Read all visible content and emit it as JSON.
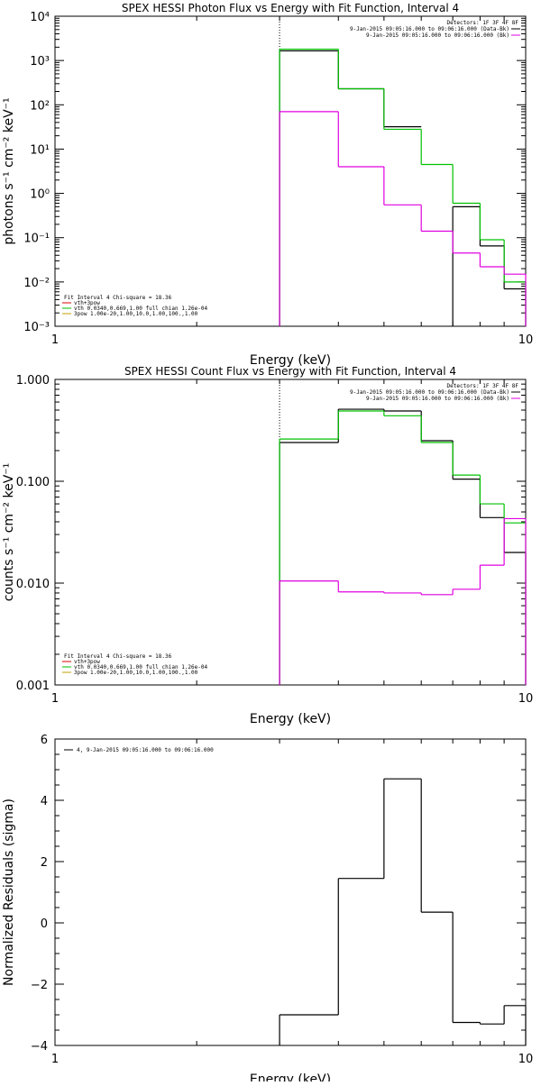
{
  "chart_data": [
    {
      "type": "line",
      "title": "SPEX HESSI Photon Flux vs Energy with Fit Function, Interval 4",
      "xlabel": "Energy (keV)",
      "ylabel": "photons s⁻¹ cm⁻² keV⁻¹",
      "xscale": "log",
      "yscale": "log",
      "xlim": [
        1,
        10
      ],
      "ylim": [
        0.001,
        10000
      ],
      "x_tick_labels": [
        "1",
        "10"
      ],
      "y_tick_labels": [
        "10⁻³",
        "10⁻²",
        "10⁻¹",
        "10⁰",
        "10¹",
        "10²",
        "10³",
        "10⁴"
      ],
      "y_tick_values": [
        0.001,
        0.01,
        0.1,
        1,
        10,
        100,
        1000,
        10000
      ],
      "vline_x": 3.0,
      "legend_top": {
        "position": "top-right",
        "header": "Detectors: 1F 3F 4F 8F",
        "entries": [
          {
            "text": "9-Jan-2015 09:05:16.000 to 09:06:16.000 (Data-Bk)",
            "color": "#000000"
          },
          {
            "text": "9-Jan-2015 09:05:16.000 to 09:06:16.000 (Bk)",
            "color": "#e000e0"
          }
        ]
      },
      "legend_bottom": {
        "position": "bottom-left",
        "header": "Fit Interval 4   Chi-square = 18.36",
        "entries": [
          {
            "text": "vth+3pow",
            "color": "#e00000"
          },
          {
            "text": "vth 0.0340,0.669,1.00  full chian 1.26e-04",
            "color": "#00c000"
          },
          {
            "text": "3pow 1.00e-20,1.00,10.0,1.00,100.,1.00",
            "color": "#c0a000"
          }
        ]
      },
      "series": [
        {
          "color": "#000000",
          "bin_edges": [
            3.0,
            4.0,
            5.0,
            6.0,
            7.0,
            8.0,
            9.0,
            10.0
          ],
          "values": [
            1650,
            230,
            32,
            null,
            0.5,
            0.065,
            0.007
          ]
        },
        {
          "color": "#00c000",
          "bin_edges": [
            3.0,
            4.0,
            5.0,
            6.0,
            7.0,
            8.0,
            9.0,
            10.0
          ],
          "values": [
            1800,
            230,
            28,
            4.5,
            0.6,
            0.09,
            0.01
          ]
        },
        {
          "color": "#e000e0",
          "bin_edges": [
            3.0,
            4.0,
            5.0,
            6.0,
            7.0,
            8.0,
            9.0,
            10.0
          ],
          "values": [
            70,
            4,
            0.55,
            0.14,
            0.045,
            0.022,
            0.015
          ]
        }
      ]
    },
    {
      "type": "line",
      "title": "SPEX HESSI Count Flux vs Energy with Fit Function, Interval 4",
      "xlabel": "Energy (keV)",
      "ylabel": "counts s⁻¹ cm⁻² keV⁻¹",
      "xscale": "log",
      "yscale": "log",
      "xlim": [
        1,
        10
      ],
      "ylim": [
        0.001,
        1.0
      ],
      "x_tick_labels": [
        "1",
        "10"
      ],
      "y_tick_labels": [
        "0.001",
        "0.010",
        "0.100",
        "1.000"
      ],
      "y_tick_values": [
        0.001,
        0.01,
        0.1,
        1.0
      ],
      "vline_x": 3.0,
      "legend_top": {
        "position": "top-right",
        "header": "Detectors: 1F 3F 4F 8F",
        "entries": [
          {
            "text": "9-Jan-2015 09:05:16.000 to 09:06:16.000 (Data-Bk)",
            "color": "#000000"
          },
          {
            "text": "9-Jan-2015 09:05:16.000 to 09:06:16.000 (Bk)",
            "color": "#e000e0"
          }
        ]
      },
      "legend_bottom": {
        "position": "bottom-left",
        "header": "Fit Interval 4   Chi-square = 18.36",
        "entries": [
          {
            "text": "vth+3pow",
            "color": "#e00000"
          },
          {
            "text": "vth 0.0340,0.669,1.00  full chian 1.26e-04",
            "color": "#00c000"
          },
          {
            "text": "3pow 1.00e-20,1.00,10.0,1.00,100.,1.00",
            "color": "#c0a000"
          }
        ]
      },
      "series": [
        {
          "color": "#000000",
          "bin_edges": [
            3.0,
            4.0,
            5.0,
            6.0,
            7.0,
            8.0,
            9.0,
            10.0
          ],
          "values": [
            0.24,
            0.51,
            0.49,
            0.25,
            0.105,
            0.044,
            0.02
          ]
        },
        {
          "color": "#00c000",
          "bin_edges": [
            3.0,
            4.0,
            5.0,
            6.0,
            7.0,
            8.0,
            9.0,
            10.0
          ],
          "values": [
            0.26,
            0.49,
            0.44,
            0.24,
            0.115,
            0.06,
            0.039
          ]
        },
        {
          "color": "#e000e0",
          "bin_edges": [
            3.0,
            4.0,
            5.0,
            6.0,
            7.0,
            8.0,
            9.0,
            10.0
          ],
          "values": [
            0.0105,
            0.0082,
            0.008,
            0.0077,
            0.0087,
            0.015,
            0.043
          ]
        }
      ]
    },
    {
      "type": "line",
      "title": "",
      "xlabel": "Energy (keV)",
      "ylabel": "Normalized Residuals (sigma)",
      "xscale": "log",
      "yscale": "linear",
      "xlim": [
        1,
        10
      ],
      "ylim": [
        -4,
        6
      ],
      "x_tick_labels": [
        "1",
        "10"
      ],
      "y_tick_labels": [
        "−4",
        "−2",
        "0",
        "2",
        "4",
        "6"
      ],
      "y_tick_values": [
        -4,
        -2,
        0,
        2,
        4,
        6
      ],
      "legend_top": {
        "position": "top-left",
        "entries": [
          {
            "text": "4, 9-Jan-2015 09:05:16.000 to 09:06:16.000",
            "color": "#000000"
          }
        ]
      },
      "series": [
        {
          "color": "#000000",
          "bin_edges": [
            3.0,
            4.0,
            5.0,
            6.0,
            7.0,
            8.0,
            9.0,
            10.0
          ],
          "values": [
            -3.0,
            1.45,
            4.7,
            0.35,
            -3.25,
            -3.3,
            -2.7
          ]
        }
      ]
    }
  ]
}
